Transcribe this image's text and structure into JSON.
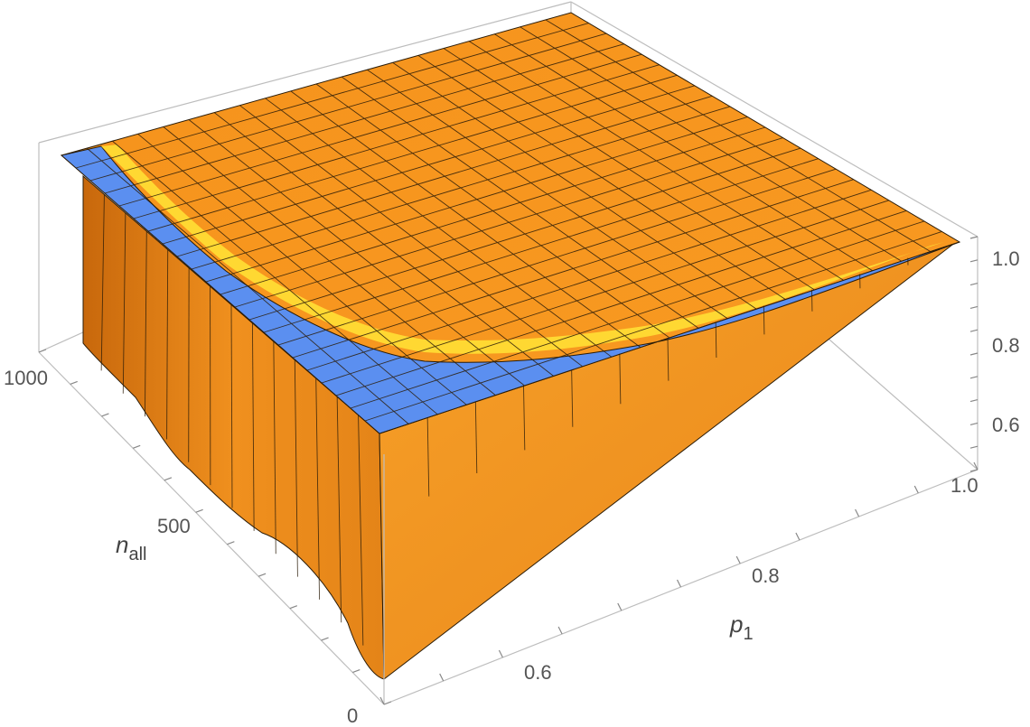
{
  "chart_data": {
    "type": "surface3d",
    "title": "",
    "axes": {
      "x": {
        "label": "p",
        "label_subscript": "1",
        "range": [
          0.5,
          1.0
        ],
        "ticks": [
          "0.6",
          "0.8",
          "1.0"
        ]
      },
      "y": {
        "label": "n",
        "label_subscript": "all",
        "range": [
          0,
          1100
        ],
        "ticks": [
          "0",
          "500",
          "1000"
        ]
      },
      "z": {
        "range": [
          0.5,
          1.0
        ],
        "ticks": [
          "0.6",
          "0.8",
          "1.0"
        ]
      }
    },
    "mesh": {
      "x_lines": 20,
      "y_lines": 22
    },
    "colors": {
      "surface": "#f5961f",
      "surface_dark": "#e07c10",
      "surface_light": "#ffb13a",
      "highlight": "#ffe338",
      "plateau": "#5b8ff0",
      "mesh": "#3a2a10",
      "box": "#bdbdbd"
    }
  }
}
